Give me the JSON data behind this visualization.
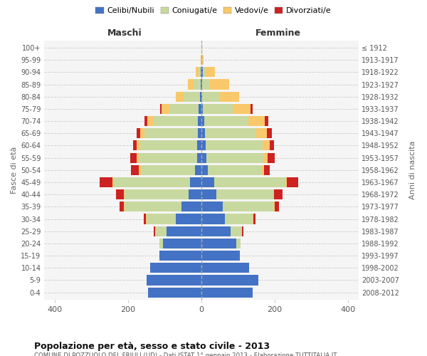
{
  "age_groups": [
    "0-4",
    "5-9",
    "10-14",
    "15-19",
    "20-24",
    "25-29",
    "30-34",
    "35-39",
    "40-44",
    "45-49",
    "50-54",
    "55-59",
    "60-64",
    "65-69",
    "70-74",
    "75-79",
    "80-84",
    "85-89",
    "90-94",
    "95-99",
    "100+"
  ],
  "birth_years": [
    "2008-2012",
    "2003-2007",
    "1998-2002",
    "1993-1997",
    "1988-1992",
    "1983-1987",
    "1978-1982",
    "1973-1977",
    "1968-1972",
    "1963-1967",
    "1958-1962",
    "1953-1957",
    "1948-1952",
    "1943-1947",
    "1938-1942",
    "1933-1937",
    "1928-1932",
    "1923-1927",
    "1918-1922",
    "1913-1917",
    "≤ 1912"
  ],
  "males": {
    "celibi": [
      145,
      150,
      140,
      115,
      105,
      95,
      70,
      55,
      35,
      30,
      18,
      12,
      12,
      10,
      10,
      8,
      4,
      2,
      2,
      0,
      0
    ],
    "coniugati": [
      0,
      0,
      0,
      0,
      10,
      30,
      80,
      155,
      175,
      210,
      148,
      158,
      155,
      145,
      120,
      80,
      45,
      20,
      5,
      0,
      0
    ],
    "vedovi": [
      0,
      0,
      0,
      0,
      0,
      2,
      2,
      2,
      2,
      2,
      4,
      6,
      10,
      12,
      18,
      20,
      20,
      15,
      8,
      2,
      0
    ],
    "divorziati": [
      0,
      0,
      0,
      0,
      0,
      3,
      5,
      12,
      22,
      35,
      22,
      18,
      10,
      10,
      8,
      4,
      0,
      0,
      0,
      0,
      0
    ]
  },
  "females": {
    "nubili": [
      140,
      155,
      130,
      105,
      95,
      80,
      65,
      58,
      42,
      35,
      18,
      14,
      12,
      10,
      8,
      5,
      3,
      2,
      4,
      0,
      0
    ],
    "coniugate": [
      0,
      0,
      0,
      0,
      12,
      30,
      75,
      140,
      155,
      195,
      148,
      155,
      155,
      140,
      120,
      80,
      45,
      20,
      8,
      2,
      0
    ],
    "vedove": [
      0,
      0,
      0,
      0,
      0,
      2,
      2,
      2,
      2,
      4,
      6,
      12,
      20,
      30,
      45,
      50,
      55,
      55,
      25,
      5,
      2
    ],
    "divorziate": [
      0,
      0,
      0,
      0,
      0,
      3,
      5,
      12,
      22,
      30,
      15,
      20,
      12,
      12,
      10,
      5,
      0,
      0,
      0,
      0,
      0
    ]
  },
  "colors": {
    "celibi": "#4472C4",
    "coniugati": "#C8D9A0",
    "vedovi": "#F9C86A",
    "divorziati": "#CC2222"
  },
  "xlim": [
    -430,
    430
  ],
  "xticks": [
    -400,
    -200,
    0,
    200,
    400
  ],
  "xticklabels": [
    "400",
    "200",
    "0",
    "200",
    "400"
  ],
  "title": "Popolazione per età, sesso e stato civile - 2013",
  "subtitle": "COMUNE DI POZZUOLO DEL FRIULI (UD) - Dati ISTAT 1° gennaio 2013 - Elaborazione TUTTITALIA.IT",
  "ylabel_left": "Fasce di età",
  "ylabel_right": "Anni di nascita",
  "header_maschi": "Maschi",
  "header_femmine": "Femmine",
  "legend_labels": [
    "Celibi/Nubili",
    "Coniugati/e",
    "Vedovi/e",
    "Divorziati/e"
  ],
  "bg_color": "#FFFFFF",
  "plot_bg": "#F5F5F5",
  "bar_height": 0.82
}
